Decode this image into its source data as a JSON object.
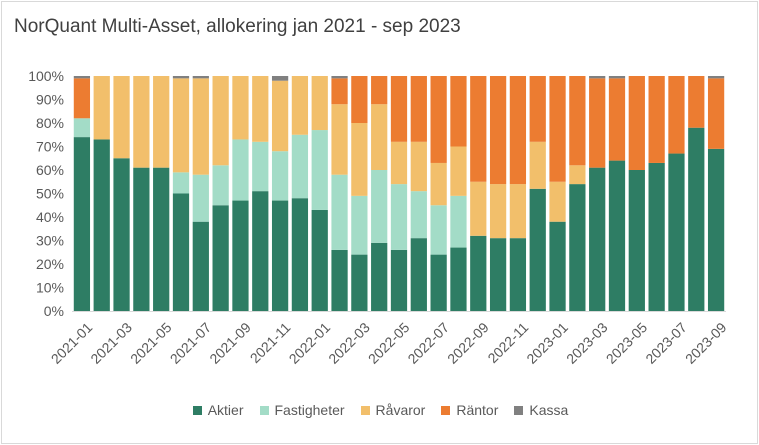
{
  "chart_data": {
    "type": "bar",
    "stacked": true,
    "title": "NorQuant Multi-Asset, allokering jan 2021 - sep 2023",
    "xlabel": "",
    "ylabel": "",
    "ylim": [
      0,
      100
    ],
    "y_ticks": [
      "0%",
      "10%",
      "20%",
      "30%",
      "40%",
      "50%",
      "60%",
      "70%",
      "80%",
      "90%",
      "100%"
    ],
    "legend_position": "bottom",
    "grid": false,
    "categories": [
      "2021-01",
      "2021-02",
      "2021-03",
      "2021-04",
      "2021-05",
      "2021-06",
      "2021-07",
      "2021-08",
      "2021-09",
      "2021-10",
      "2021-11",
      "2021-12",
      "2022-01",
      "2022-02",
      "2022-03",
      "2022-04",
      "2022-05",
      "2022-06",
      "2022-07",
      "2022-08",
      "2022-09",
      "2022-10",
      "2022-11",
      "2022-12",
      "2023-01",
      "2023-02",
      "2023-03",
      "2023-04",
      "2023-05",
      "2023-06",
      "2023-07",
      "2023-08",
      "2023-09"
    ],
    "x_tick_labels": [
      "2021-01",
      "2021-03",
      "2021-05",
      "2021-07",
      "2021-09",
      "2021-11",
      "2022-01",
      "2022-03",
      "2022-05",
      "2022-07",
      "2022-09",
      "2022-11",
      "2023-01",
      "2023-03",
      "2023-05",
      "2023-07",
      "2023-09"
    ],
    "series": [
      {
        "name": "Aktier",
        "color": "#2e7d64",
        "values": [
          74,
          73,
          65,
          61,
          61,
          50,
          38,
          45,
          47,
          51,
          47,
          48,
          43,
          26,
          24,
          29,
          26,
          31,
          24,
          27,
          32,
          31,
          31,
          52,
          38,
          54,
          61,
          64,
          60,
          63,
          67,
          78,
          69
        ]
      },
      {
        "name": "Fastigheter",
        "color": "#a3dcc7",
        "values": [
          8,
          0,
          0,
          0,
          0,
          9,
          20,
          17,
          26,
          21,
          21,
          27,
          34,
          32,
          25,
          31,
          28,
          20,
          21,
          22,
          0,
          0,
          0,
          0,
          0,
          0,
          0,
          0,
          0,
          0,
          0,
          0,
          0
        ]
      },
      {
        "name": "Råvaror",
        "color": "#f2bf6b",
        "values": [
          0,
          27,
          35,
          39,
          39,
          40,
          41,
          38,
          27,
          28,
          30,
          25,
          23,
          30,
          31,
          28,
          18,
          21,
          18,
          21,
          23,
          23,
          23,
          20,
          17,
          8,
          0,
          0,
          0,
          0,
          0,
          0,
          0
        ]
      },
      {
        "name": "Räntor",
        "color": "#ec7c31",
        "values": [
          17,
          0,
          0,
          0,
          0,
          0,
          0,
          0,
          0,
          0,
          0,
          0,
          0,
          11,
          20,
          12,
          28,
          28,
          37,
          30,
          45,
          46,
          46,
          28,
          45,
          38,
          38,
          35,
          40,
          37,
          33,
          22,
          30
        ]
      },
      {
        "name": "Kassa",
        "color": "#808080",
        "values": [
          1,
          0,
          0,
          0,
          0,
          1,
          1,
          0,
          0,
          0,
          2,
          0,
          0,
          1,
          0,
          0,
          0,
          0,
          0,
          0,
          0,
          0,
          0,
          0,
          0,
          0,
          1,
          1,
          0,
          0,
          0,
          0,
          1
        ]
      }
    ]
  }
}
